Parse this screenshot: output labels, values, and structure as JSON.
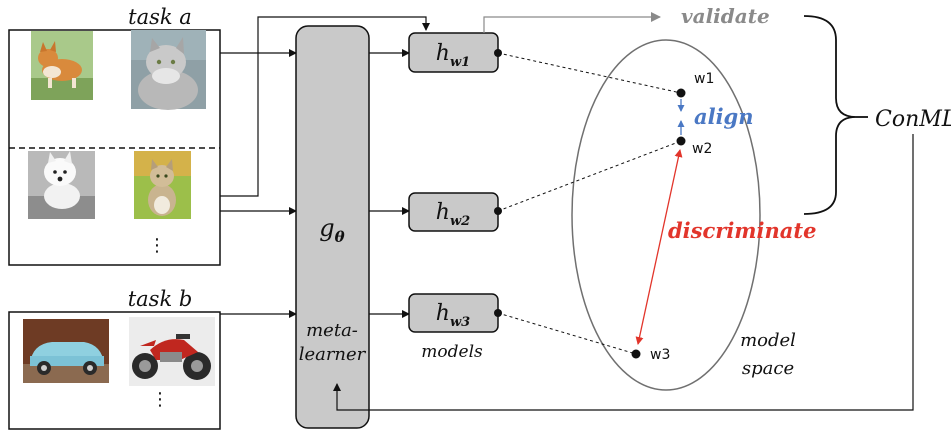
{
  "task_a": {
    "title": "task a",
    "ellipsis": "⋮"
  },
  "task_b": {
    "title": "task b",
    "ellipsis": "⋮"
  },
  "meta_learner": {
    "symbol": "g",
    "subscript": "θ",
    "label_line1": "meta-",
    "label_line2": "learner"
  },
  "models": [
    {
      "symbol": "h",
      "subscript": "w1"
    },
    {
      "symbol": "h",
      "subscript": "w2"
    },
    {
      "symbol": "h",
      "subscript": "w3"
    }
  ],
  "models_label": "models",
  "validate": "validate",
  "conml": "ConML",
  "model_space": {
    "line1": "model",
    "line2": "space"
  },
  "points": {
    "w1": "w1",
    "w2": "w2",
    "w3": "w3"
  },
  "align": "align",
  "discriminate": "discriminate",
  "colors": {
    "box_fill": "#c9c9c9",
    "validate": "#8a8a8a",
    "align": "#4a78c4",
    "discriminate": "#e2352b",
    "ellipse": "#707070"
  },
  "images": {
    "task_a": [
      "corgi-image",
      "persian-cat-image",
      "westie-dog-image",
      "tabby-cat-image"
    ],
    "task_b": [
      "vintage-car-image",
      "motorcycle-image"
    ]
  }
}
